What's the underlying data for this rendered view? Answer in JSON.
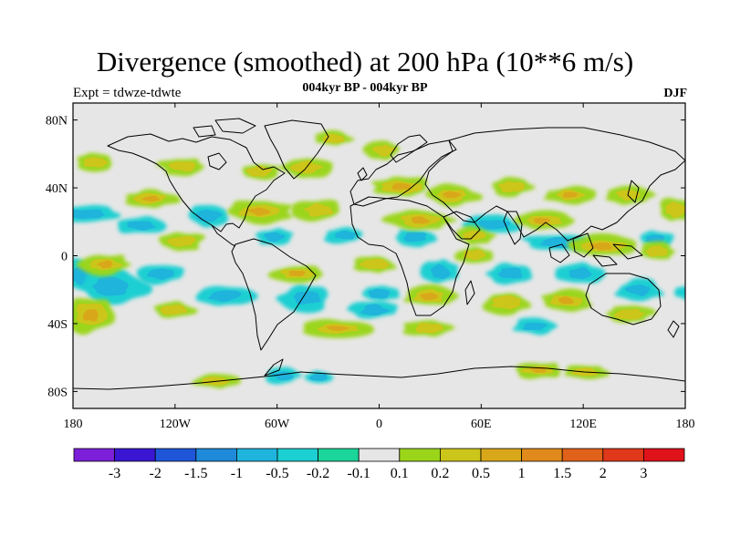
{
  "title": "Divergence (smoothed) at 200 hPa (10**6 m/s)",
  "subtitle": "004kyr BP - 004kyr BP",
  "expt": "Expt = tdwze-tdwte",
  "season": "DJF",
  "map": {
    "lon_range": [
      -180,
      180
    ],
    "lat_range": [
      -90,
      90
    ],
    "background": "#e6e6e6",
    "coastline_color": "#000000",
    "x_ticks": [
      {
        "value": -180,
        "label": "180"
      },
      {
        "value": -120,
        "label": "120W"
      },
      {
        "value": -60,
        "label": "60W"
      },
      {
        "value": 0,
        "label": "0"
      },
      {
        "value": 60,
        "label": "60E"
      },
      {
        "value": 120,
        "label": "120E"
      },
      {
        "value": 180,
        "label": "180"
      }
    ],
    "y_ticks": [
      {
        "value": 80,
        "label": "80N"
      },
      {
        "value": 40,
        "label": "40N"
      },
      {
        "value": 0,
        "label": "0"
      },
      {
        "value": -40,
        "label": "40S"
      },
      {
        "value": -80,
        "label": "80S"
      }
    ]
  },
  "colorbar": {
    "colors": [
      "#7b1fd9",
      "#3a16d2",
      "#1f56d9",
      "#1f8ad9",
      "#1fb4dc",
      "#1ccfd2",
      "#1cd59a",
      "#e6e6e6",
      "#9bd51a",
      "#ccc51a",
      "#d9a81a",
      "#df8a1a",
      "#e0621a",
      "#e0381a",
      "#e0121a"
    ],
    "labels": [
      "-3",
      "-2",
      "-1.5",
      "-1",
      "-0.5",
      "-0.2",
      "-0.1",
      "0.1",
      "0.2",
      "0.5",
      "1",
      "1.5",
      "2",
      "3"
    ]
  }
}
